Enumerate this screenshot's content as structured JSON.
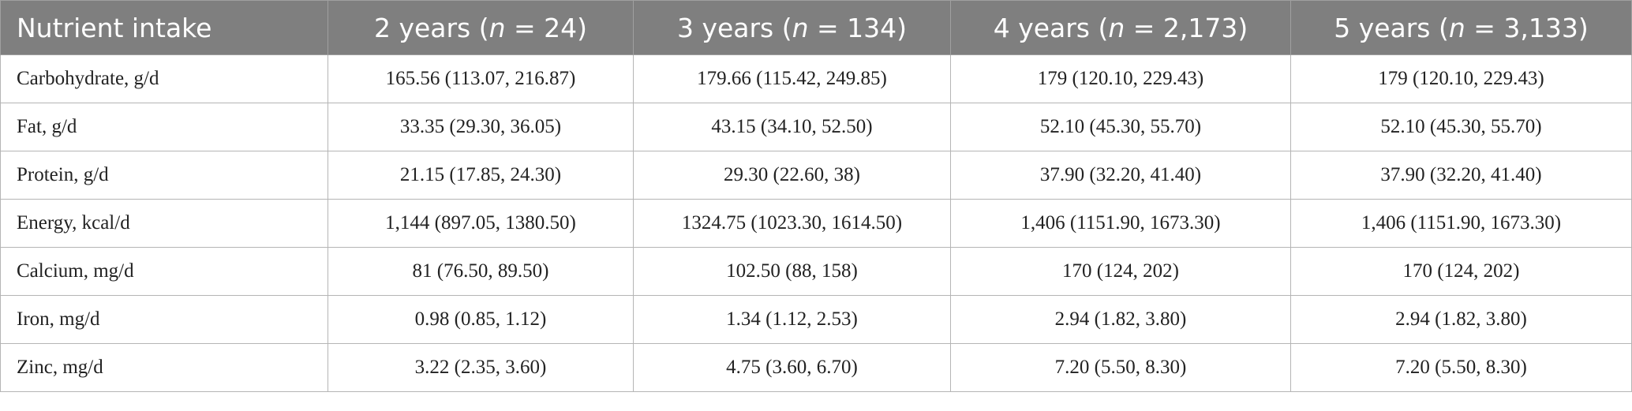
{
  "table": {
    "header": [
      [
        "Nutrient intake"
      ],
      [
        "2 years (",
        "n",
        " = 24)"
      ],
      [
        "3 years (",
        "n",
        " = 134)"
      ],
      [
        "4 years (",
        "n",
        " = 2,173)"
      ],
      [
        "5 years (",
        "n",
        " = 3,133)"
      ]
    ],
    "rows": [
      [
        "Carbohydrate, g/d",
        "165.56 (113.07, 216.87)",
        "179.66 (115.42, 249.85)",
        "179 (120.10, 229.43)",
        "179 (120.10, 229.43)"
      ],
      [
        "Fat, g/d",
        "33.35 (29.30, 36.05)",
        "43.15 (34.10, 52.50)",
        "52.10 (45.30, 55.70)",
        "52.10 (45.30, 55.70)"
      ],
      [
        "Protein, g/d",
        "21.15 (17.85, 24.30)",
        "29.30 (22.60, 38)",
        "37.90 (32.20, 41.40)",
        "37.90 (32.20, 41.40)"
      ],
      [
        "Energy, kcal/d",
        "1,144 (897.05, 1380.50)",
        "1324.75 (1023.30, 1614.50)",
        "1,406 (1151.90, 1673.30)",
        "1,406 (1151.90, 1673.30)"
      ],
      [
        "Calcium, mg/d",
        "81 (76.50, 89.50)",
        "102.50 (88, 158)",
        "170 (124, 202)",
        "170 (124, 202)"
      ],
      [
        "Iron, mg/d",
        "0.98 (0.85, 1.12)",
        "1.34 (1.12, 2.53)",
        "2.94 (1.82, 3.80)",
        "2.94 (1.82, 3.80)"
      ],
      [
        "Zinc, mg/d",
        "3.22 (2.35, 3.60)",
        "4.75 (3.60, 6.70)",
        "7.20 (5.50, 8.30)",
        "7.20 (5.50, 8.30)"
      ]
    ]
  }
}
